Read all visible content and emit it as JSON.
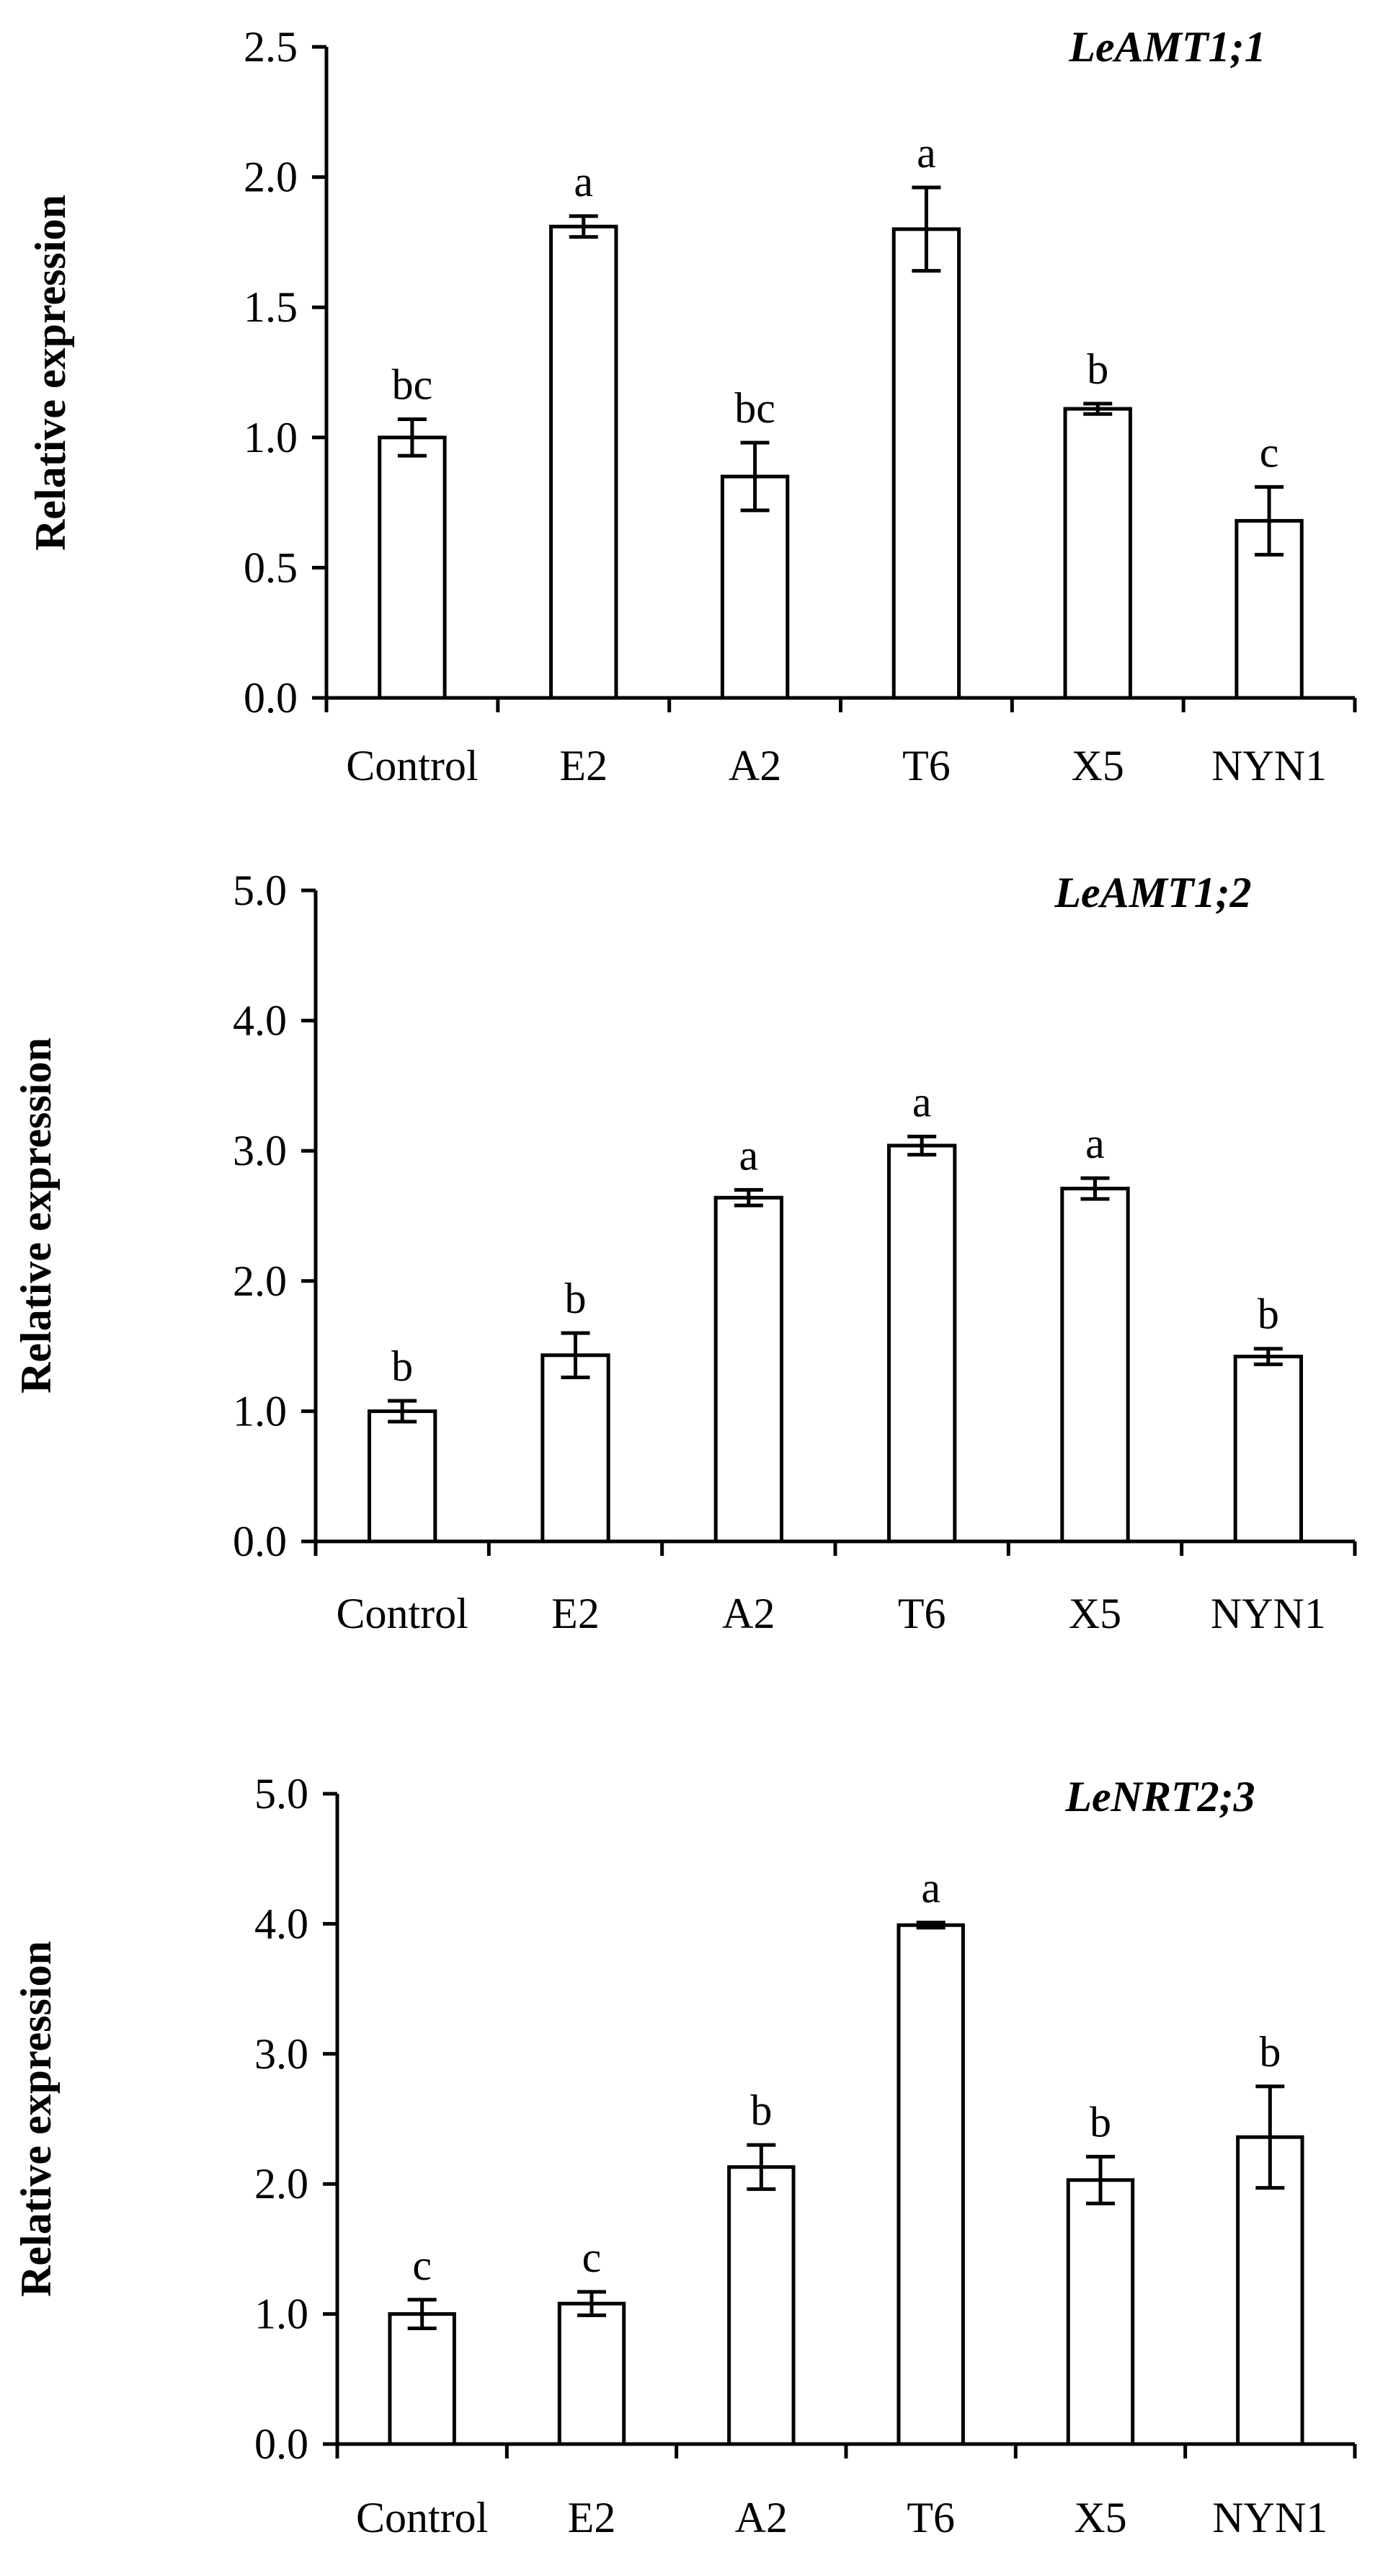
{
  "chart_data": [
    {
      "type": "bar",
      "title": "LeAMT1;1",
      "ylabel": "Relative expression",
      "xlabel": "",
      "categories": [
        "Control",
        "E2",
        "A2",
        "T6",
        "X5",
        "NYN1"
      ],
      "values": [
        1.0,
        1.81,
        0.85,
        1.8,
        1.11,
        0.68
      ],
      "errors": [
        0.07,
        0.04,
        0.13,
        0.16,
        0.02,
        0.13
      ],
      "significance": [
        "bc",
        "a",
        "bc",
        "a",
        "b",
        "c"
      ],
      "ylim": [
        0,
        2.5
      ],
      "yticks": [
        "0.0",
        "0.5",
        "1.0",
        "1.5",
        "2.0",
        "2.5"
      ],
      "ytick_values": [
        0,
        0.5,
        1.0,
        1.5,
        2.0,
        2.5
      ],
      "grid": false
    },
    {
      "type": "bar",
      "title": "LeAMT1;2",
      "ylabel": "Relative expression",
      "xlabel": "",
      "categories": [
        "Control",
        "E2",
        "A2",
        "T6",
        "X5",
        "NYN1"
      ],
      "values": [
        1.0,
        1.43,
        2.64,
        3.04,
        2.71,
        1.42
      ],
      "errors": [
        0.08,
        0.17,
        0.06,
        0.07,
        0.08,
        0.06
      ],
      "significance": [
        "b",
        "b",
        "a",
        "a",
        "a",
        "b"
      ],
      "ylim": [
        0,
        5
      ],
      "yticks": [
        "0.0",
        "1.0",
        "2.0",
        "3.0",
        "4.0",
        "5.0"
      ],
      "ytick_values": [
        0,
        1,
        2,
        3,
        4,
        5
      ],
      "grid": false
    },
    {
      "type": "bar",
      "title": "LeNRT2;3",
      "ylabel": "Relative expression",
      "xlabel": "",
      "categories": [
        "Control",
        "E2",
        "A2",
        "T6",
        "X5",
        "NYN1"
      ],
      "values": [
        1.0,
        1.08,
        2.13,
        3.99,
        2.03,
        2.36
      ],
      "errors": [
        0.11,
        0.09,
        0.17,
        0.02,
        0.18,
        0.39
      ],
      "significance": [
        "c",
        "c",
        "b",
        "a",
        "b",
        "b"
      ],
      "ylim": [
        0,
        5
      ],
      "yticks": [
        "0.0",
        "1.0",
        "2.0",
        "3.0",
        "4.0",
        "5.0"
      ],
      "ytick_values": [
        0,
        1,
        2,
        3,
        4,
        5
      ],
      "grid": false
    }
  ]
}
